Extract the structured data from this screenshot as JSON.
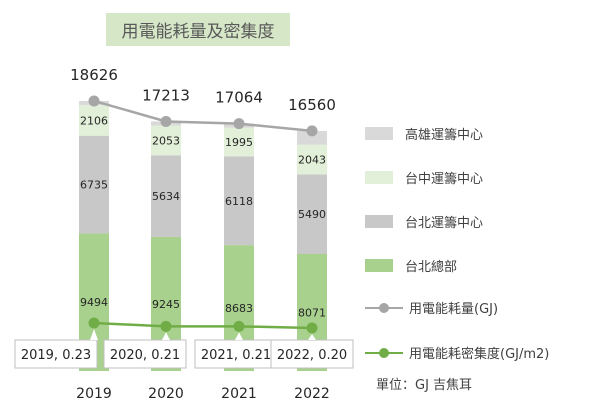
{
  "title": "用電能耗量及密集度",
  "unit_note": "單位：GJ 吉焦耳",
  "colors": {
    "kaohsiung": "#d9d9d9",
    "taichung": "#e2f0d9",
    "taipei_ops": "#c8c8c8",
    "hq": "#a9d18e",
    "total_line": "#a6a6a6",
    "density_line": "#70ad47",
    "title_bg": "#d6e7c8"
  },
  "legend": [
    {
      "label": "高雄運籌中心",
      "kind": "bar",
      "color": "#d9d9d9"
    },
    {
      "label": "台中運籌中心",
      "kind": "bar",
      "color": "#e2f0d9"
    },
    {
      "label": "台北運籌中心",
      "kind": "bar",
      "color": "#c8c8c8"
    },
    {
      "label": "台北總部",
      "kind": "bar",
      "color": "#a9d18e"
    },
    {
      "label": "用電能耗量(GJ)",
      "kind": "line",
      "color": "#a6a6a6"
    },
    {
      "label": "用電能耗密集度(GJ/m2)",
      "kind": "line",
      "color": "#70ad47"
    }
  ],
  "chart_data": {
    "type": "bar",
    "stacked": true,
    "categories": [
      "2019",
      "2020",
      "2021",
      "2022"
    ],
    "series": [
      {
        "name": "台北總部",
        "values": [
          9494,
          9245,
          8683,
          8071
        ],
        "color": "#a9d18e"
      },
      {
        "name": "台北運籌中心",
        "values": [
          6735,
          5634,
          6118,
          5490
        ],
        "color": "#c8c8c8"
      },
      {
        "name": "台中運籌中心",
        "values": [
          2106,
          2053,
          1995,
          2043
        ],
        "color": "#e2f0d9"
      },
      {
        "name": "高雄運籌中心",
        "values": [
          291,
          281,
          268,
          956
        ],
        "color": "#d9d9d9"
      }
    ],
    "series_labels_shown": [
      "台北總部",
      "台北運籌中心",
      "台中運籌中心"
    ],
    "totals": {
      "name": "用電能耗量(GJ)",
      "values": [
        18626,
        17213,
        17064,
        16560
      ]
    },
    "density": {
      "name": "用電能耗密集度(GJ/m2)",
      "values": [
        0.23,
        0.21,
        0.21,
        0.2
      ],
      "labels": [
        "2019, 0.23",
        "2020, 0.21",
        "2021, 0.21",
        "2022, 0.20"
      ]
    },
    "ylim": [
      0,
      22000
    ],
    "density_ylim": [
      0,
      0.8
    ],
    "grid": false,
    "legend_position": "right"
  }
}
